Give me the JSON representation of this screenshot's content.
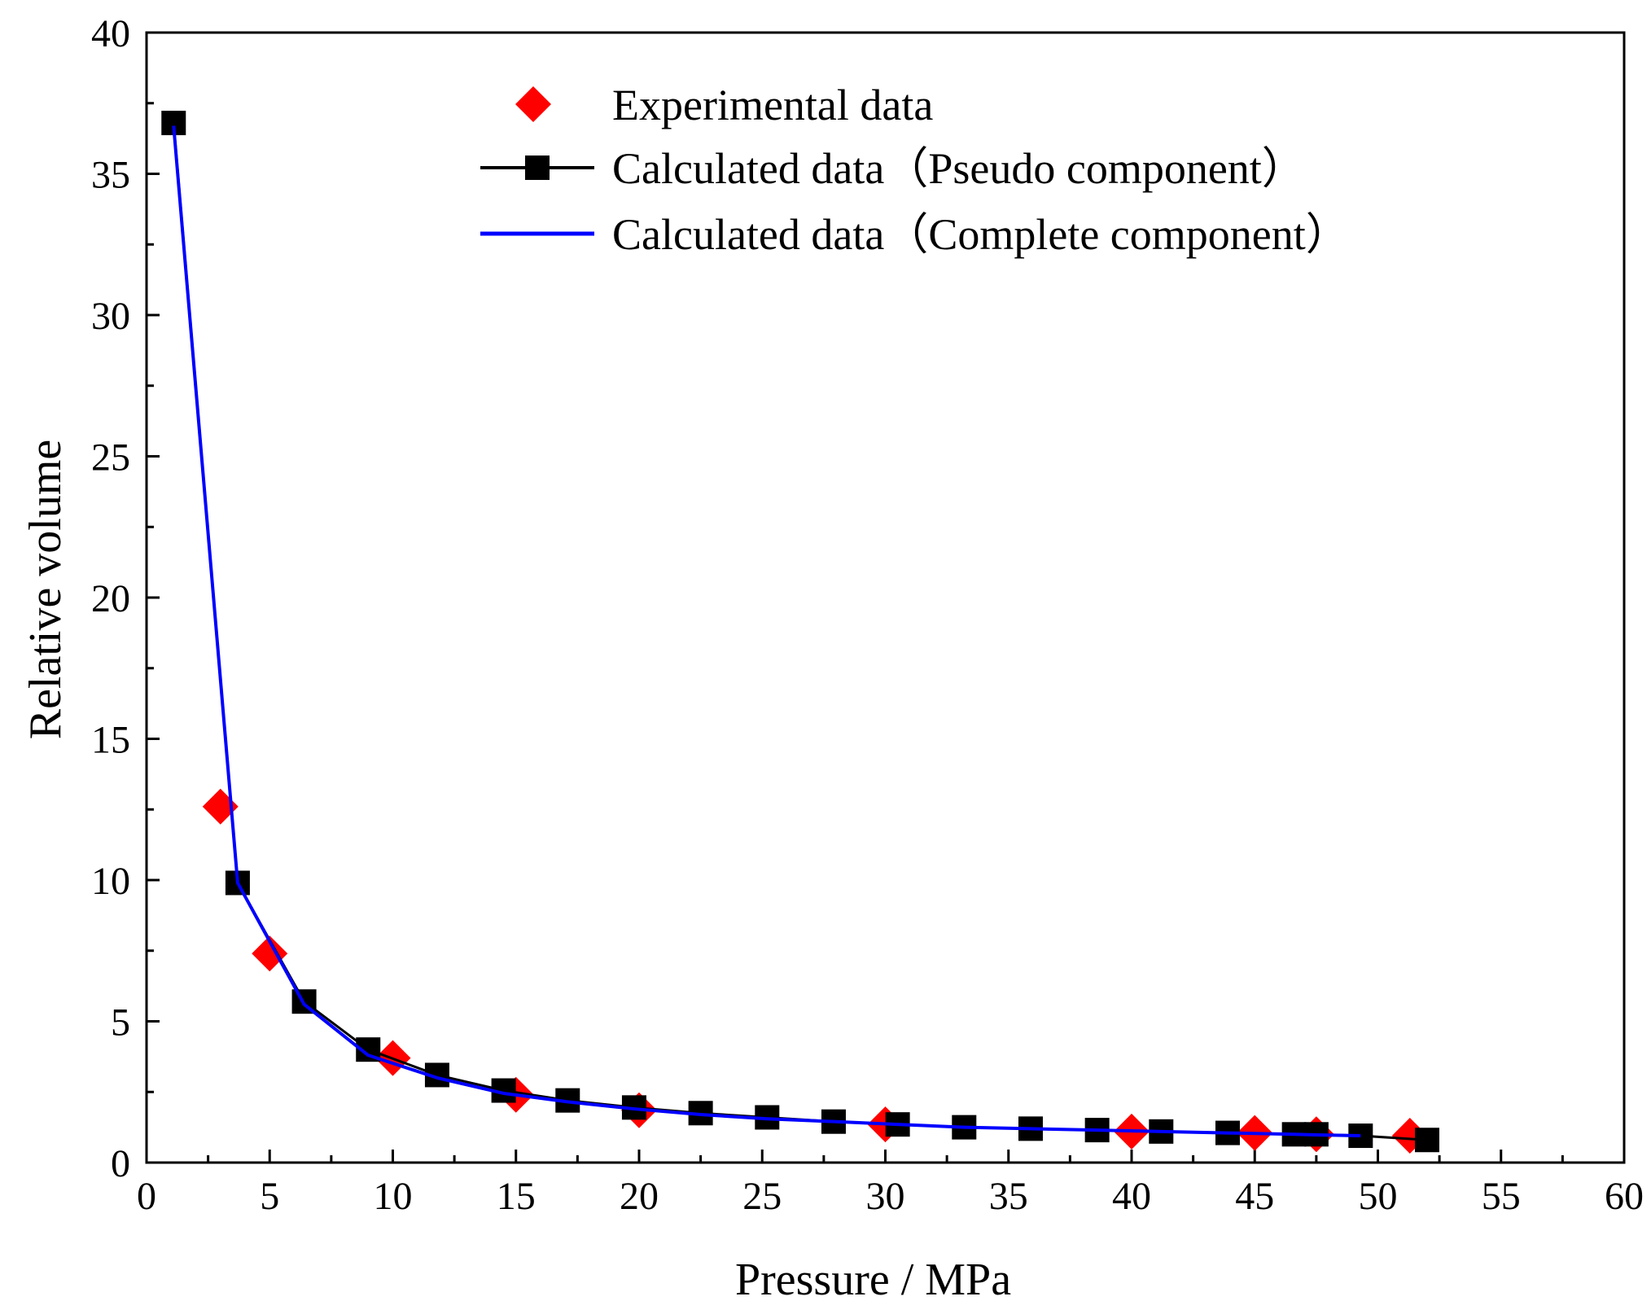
{
  "chart_data": {
    "type": "scatter",
    "title": "",
    "xlabel": "Pressure / MPa",
    "ylabel": "Relative volume",
    "xlim": [
      0,
      60
    ],
    "ylim": [
      0,
      40
    ],
    "xticks": [
      0,
      5,
      10,
      15,
      20,
      25,
      30,
      35,
      40,
      45,
      50,
      55,
      60
    ],
    "yticks": [
      0,
      5,
      10,
      15,
      20,
      25,
      30,
      35,
      40
    ],
    "grid": false,
    "legend_position": "top-center",
    "series": [
      {
        "name": "Experimental data",
        "style": "markers",
        "marker": "diamond",
        "color": "#ff0000",
        "x": [
          3.0,
          5.0,
          10.0,
          15.0,
          20.0,
          30.0,
          40.0,
          45.0,
          47.5,
          51.3
        ],
        "y": [
          12.6,
          7.4,
          3.7,
          2.4,
          1.85,
          1.35,
          1.1,
          1.05,
          1.0,
          0.95
        ]
      },
      {
        "name": "Calculated data（Pseudo component）",
        "style": "line+markers",
        "marker": "square",
        "color": "#000000",
        "x": [
          1.1,
          3.7,
          6.4,
          9.0,
          11.8,
          14.5,
          17.1,
          19.8,
          22.5,
          25.2,
          27.9,
          30.5,
          33.2,
          35.9,
          38.6,
          41.2,
          43.9,
          46.6,
          47.5,
          49.3,
          52.0
        ],
        "y": [
          36.8,
          9.9,
          5.7,
          4.0,
          3.1,
          2.55,
          2.2,
          1.95,
          1.75,
          1.6,
          1.45,
          1.35,
          1.25,
          1.2,
          1.15,
          1.1,
          1.05,
          1.0,
          1.0,
          0.95,
          0.8
        ]
      },
      {
        "name": "Calculated data（Complete component）",
        "style": "line",
        "color": "#0000ff",
        "x": [
          1.1,
          3.7,
          6.4,
          9.0,
          11.8,
          14.5,
          17.1,
          19.8,
          22.5,
          25.2,
          27.9,
          30.5,
          33.2,
          35.9,
          38.6,
          41.2,
          43.9,
          46.6,
          47.5,
          49.3
        ],
        "y": [
          36.7,
          9.9,
          5.6,
          3.8,
          3.0,
          2.45,
          2.15,
          1.9,
          1.7,
          1.55,
          1.45,
          1.35,
          1.25,
          1.2,
          1.15,
          1.1,
          1.05,
          1.0,
          0.98,
          0.95
        ]
      }
    ]
  }
}
